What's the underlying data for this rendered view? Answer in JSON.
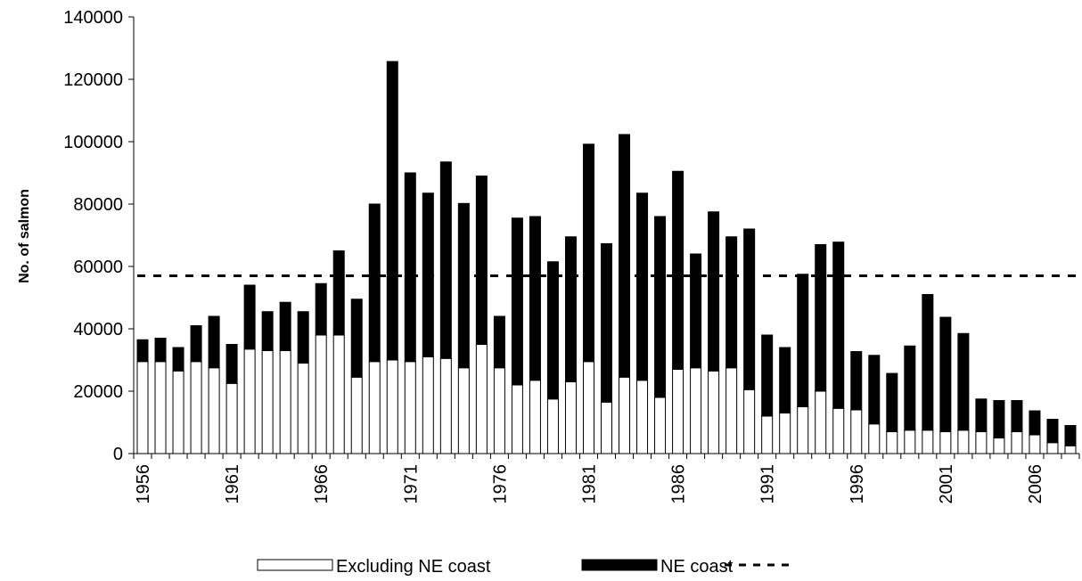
{
  "chart_data": {
    "type": "bar",
    "stacked": true,
    "ylabel": "No. of salmon",
    "xlabel": "",
    "ylim": [
      0,
      140000
    ],
    "yticks": [
      0,
      20000,
      40000,
      60000,
      80000,
      100000,
      120000,
      140000
    ],
    "xtick_labels": [
      "1956",
      "1961",
      "1966",
      "1971",
      "1976",
      "1981",
      "1986",
      "1991",
      "1996",
      "2001",
      "2006"
    ],
    "years": [
      1956,
      1957,
      1958,
      1959,
      1960,
      1961,
      1962,
      1963,
      1964,
      1965,
      1966,
      1967,
      1968,
      1969,
      1970,
      1971,
      1972,
      1973,
      1974,
      1975,
      1976,
      1977,
      1978,
      1979,
      1980,
      1981,
      1982,
      1983,
      1984,
      1985,
      1986,
      1987,
      1988,
      1989,
      1990,
      1991,
      1992,
      1993,
      1994,
      1995,
      1996,
      1997,
      1998,
      1999,
      2000,
      2001,
      2002,
      2003,
      2004,
      2005,
      2006,
      2007,
      2008
    ],
    "series": [
      {
        "name": "Excluding NE coast",
        "color": "#ffffff",
        "values": [
          29500,
          29500,
          26500,
          29500,
          27500,
          22500,
          33500,
          33000,
          33000,
          29000,
          38000,
          38000,
          24500,
          29500,
          30000,
          29500,
          31000,
          30500,
          27500,
          35000,
          27500,
          22000,
          23500,
          17500,
          23000,
          29500,
          16500,
          24500,
          23500,
          18000,
          27000,
          27500,
          26500,
          27500,
          20500,
          12000,
          13000,
          15000,
          20000,
          14500,
          14000,
          9500,
          7000,
          7500,
          7500,
          7000,
          7500,
          7000,
          5000,
          7000,
          6000,
          3500,
          2500
        ]
      },
      {
        "name": "NE coast",
        "color": "#000000",
        "values": [
          7000,
          7500,
          7500,
          11500,
          16500,
          12500,
          20500,
          12500,
          15500,
          16500,
          16500,
          27000,
          25000,
          50500,
          95700,
          60500,
          52500,
          63000,
          52700,
          54000,
          16500,
          53500,
          52500,
          44000,
          46500,
          69700,
          50800,
          77800,
          60000,
          58000,
          63500,
          36500,
          51000,
          42000,
          51500,
          26000,
          21000,
          42500,
          47000,
          53300,
          18700,
          22000,
          18700,
          27000,
          43500,
          36700,
          31000,
          10500,
          12000,
          10000,
          7700,
          7500,
          6500
        ]
      },
      {
        "name": "",
        "type": "reference-line",
        "style": "dashed",
        "value": 57000
      }
    ],
    "legend": {
      "placement": "bottom-center",
      "entries": [
        "Excluding NE coast",
        "NE coast",
        ""
      ]
    }
  }
}
